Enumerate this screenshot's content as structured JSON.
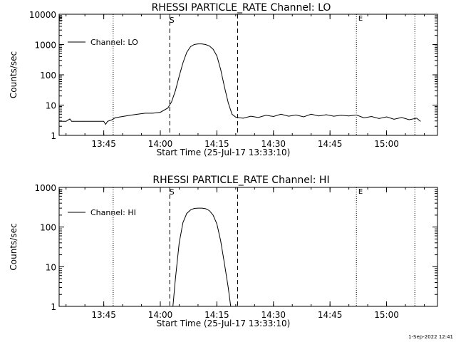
{
  "chart_data": [
    {
      "type": "line",
      "title": "RHESSI PARTICLE_RATE Channel: LO",
      "xlabel": "Start Time (25-Jul-17 13:33:10)",
      "ylabel": "Counts/sec",
      "yscale": "log",
      "ylim": [
        1,
        10000
      ],
      "xlim": [
        "13:33:10",
        "15:13:30"
      ],
      "yticks": [
        "1",
        "10",
        "100",
        "1000",
        "10000"
      ],
      "xticks": [
        "13:45",
        "14:00",
        "14:15",
        "14:30",
        "14:45",
        "15:00"
      ],
      "legend": {
        "placement": "top-left",
        "entries": [
          "Channel: LO"
        ]
      },
      "markers": {
        "start_label": "S",
        "end_label": "E",
        "edge_label": "E"
      },
      "dashed_lines": [
        "14:02:30",
        "14:20:30"
      ],
      "dotted_lines": [
        "13:47:30",
        "14:52:00",
        "15:07:30"
      ],
      "series": [
        {
          "name": "Channel: LO",
          "x": [
            "13:33:10",
            "13:35:00",
            "13:36:00",
            "13:36:30",
            "13:37:00",
            "13:40:00",
            "13:45:00",
            "13:45:30",
            "13:46:00",
            "13:47:00",
            "13:48:00",
            "13:49:00",
            "13:50:00",
            "13:52:00",
            "13:54:00",
            "13:56:00",
            "13:58:00",
            "14:00:00",
            "14:02:00",
            "14:03:00",
            "14:04:00",
            "14:05:00",
            "14:06:00",
            "14:07:00",
            "14:08:00",
            "14:09:00",
            "14:10:00",
            "14:11:00",
            "14:12:00",
            "14:13:00",
            "14:14:00",
            "14:15:00",
            "14:16:00",
            "14:17:00",
            "14:18:00",
            "14:19:00",
            "14:20:00",
            "14:21:00",
            "14:22:00",
            "14:24:00",
            "14:26:00",
            "14:28:00",
            "14:30:00",
            "14:32:00",
            "14:34:00",
            "14:36:00",
            "14:38:00",
            "14:40:00",
            "14:42:00",
            "14:44:00",
            "14:46:00",
            "14:48:00",
            "14:50:00",
            "14:52:00",
            "14:54:00",
            "14:56:00",
            "14:58:00",
            "15:00:00",
            "15:02:00",
            "15:04:00",
            "15:06:00",
            "15:08:00",
            "15:09:00"
          ],
          "y": [
            2.9,
            2.9,
            3.5,
            2.9,
            2.9,
            2.9,
            2.9,
            2.3,
            2.9,
            3.2,
            3.8,
            4.0,
            4.2,
            4.6,
            5.0,
            5.4,
            5.4,
            5.8,
            8.0,
            13,
            30,
            90,
            250,
            550,
            850,
            1000,
            1050,
            1050,
            1000,
            900,
            700,
            420,
            150,
            40,
            12,
            5,
            4,
            3.8,
            3.7,
            4.3,
            3.9,
            4.6,
            4.2,
            5.0,
            4.3,
            4.7,
            4.1,
            5.0,
            4.4,
            4.8,
            4.3,
            4.6,
            4.4,
            4.7,
            3.8,
            4.2,
            3.6,
            4.1,
            3.4,
            3.9,
            3.3,
            3.7,
            2.9
          ]
        }
      ]
    },
    {
      "type": "line",
      "title": "RHESSI PARTICLE_RATE Channel: HI",
      "xlabel": "Start Time (25-Jul-17 13:33:10)",
      "ylabel": "Counts/sec",
      "yscale": "log",
      "ylim": [
        1,
        1000
      ],
      "xlim": [
        "13:33:10",
        "15:13:30"
      ],
      "yticks": [
        "1",
        "10",
        "100",
        "1000"
      ],
      "xticks": [
        "13:45",
        "14:00",
        "14:15",
        "14:30",
        "14:45",
        "15:00"
      ],
      "legend": {
        "placement": "top-left",
        "entries": [
          "Channel: HI"
        ]
      },
      "markers": {
        "start_label": "S",
        "end_label": "E",
        "edge_label": "E"
      },
      "dashed_lines": [
        "14:02:30",
        "14:20:30"
      ],
      "dotted_lines": [
        "13:47:30",
        "14:52:00",
        "15:07:30"
      ],
      "series": [
        {
          "name": "Channel: HI",
          "x": [
            "14:03:20",
            "14:04:00",
            "14:05:00",
            "14:06:00",
            "14:07:00",
            "14:08:00",
            "14:09:00",
            "14:10:00",
            "14:11:00",
            "14:12:00",
            "14:13:00",
            "14:14:00",
            "14:15:00",
            "14:16:00",
            "14:17:00",
            "14:18:00",
            "14:18:40"
          ],
          "y": [
            1,
            5,
            40,
            130,
            220,
            270,
            295,
            300,
            300,
            290,
            260,
            200,
            120,
            45,
            12,
            3,
            1
          ]
        }
      ]
    }
  ],
  "footer": {
    "timestamp": "1-Sep-2022 12:41"
  },
  "colors": {
    "background": "#ffffff",
    "foreground": "#000000"
  }
}
